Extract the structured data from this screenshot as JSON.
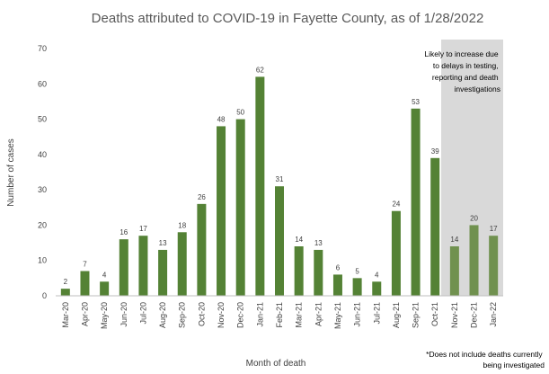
{
  "chart_data": {
    "type": "bar",
    "title": "Deaths attributed to COVID-19 in Fayette County, as of 1/28/2022",
    "xlabel": "Month of death",
    "ylabel": "Number of cases",
    "ylim": [
      0,
      70
    ],
    "yticks": [
      0,
      10,
      20,
      30,
      40,
      50,
      60,
      70
    ],
    "grid": false,
    "categories": [
      "Mar-20",
      "Apr-20",
      "May-20",
      "Jun-20",
      "Jul-20",
      "Aug-20",
      "Sep-20",
      "Oct-20",
      "Nov-20",
      "Dec-20",
      "Jan-21",
      "Feb-21",
      "Mar-21",
      "Apr-21",
      "May-21",
      "Jun-21",
      "Jul-21",
      "Aug-21",
      "Sep-21",
      "Oct-21",
      "Nov-21",
      "Dec-21",
      "Jan-22"
    ],
    "values": [
      2,
      7,
      4,
      16,
      17,
      13,
      18,
      26,
      48,
      50,
      62,
      31,
      14,
      13,
      6,
      5,
      4,
      24,
      53,
      39,
      14,
      20,
      17
    ],
    "bar_color": "#548235",
    "highlight": {
      "start_category": "Nov-21",
      "end_category": "Jan-22",
      "shade_color": "#d9d9d9",
      "bar_color": "#70914f",
      "annotation": [
        "Likely to increase due",
        "to delays in testing,",
        "reporting and death",
        "investigations"
      ]
    },
    "footnote": [
      "*Does not include deaths currently",
      "being investigated"
    ]
  }
}
